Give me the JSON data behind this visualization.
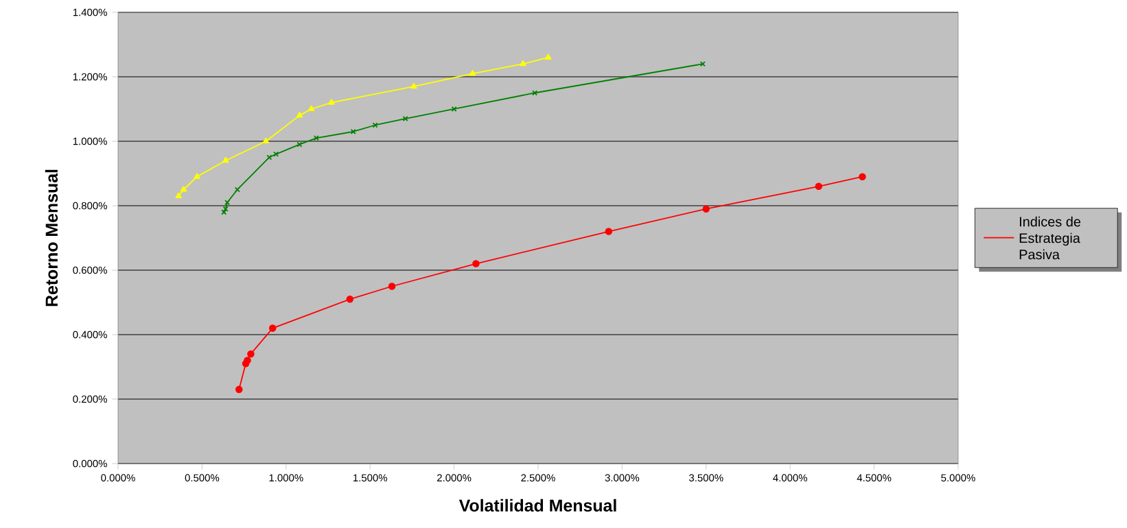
{
  "chart_data": {
    "type": "line",
    "xlabel": "Volatilidad Mensual",
    "ylabel": "Retorno Mensual",
    "xlim": [
      0,
      5
    ],
    "ylim": [
      0,
      1.4
    ],
    "xticks": [
      {
        "value": 0,
        "label": "0.000%"
      },
      {
        "value": 0.5,
        "label": "0.500%"
      },
      {
        "value": 1,
        "label": "1.000%"
      },
      {
        "value": 1.5,
        "label": "1.500%"
      },
      {
        "value": 2,
        "label": "2.000%"
      },
      {
        "value": 2.5,
        "label": "2.500%"
      },
      {
        "value": 3,
        "label": "3.000%"
      },
      {
        "value": 3.5,
        "label": "3.500%"
      },
      {
        "value": 4,
        "label": "4.000%"
      },
      {
        "value": 4.5,
        "label": "4.500%"
      },
      {
        "value": 5,
        "label": "5.000%"
      }
    ],
    "yticks": [
      {
        "value": 0,
        "label": "0.000%"
      },
      {
        "value": 0.2,
        "label": "0.200%"
      },
      {
        "value": 0.4,
        "label": "0.400%"
      },
      {
        "value": 0.6,
        "label": "0.600%"
      },
      {
        "value": 0.8,
        "label": "0.800%"
      },
      {
        "value": 1,
        "label": "1.000%"
      },
      {
        "value": 1.2,
        "label": "1.200%"
      },
      {
        "value": 1.4,
        "label": "1.400%"
      }
    ],
    "grid": "y",
    "legend": "right",
    "line_style": "solid",
    "series": [
      {
        "color": "#ffff00",
        "marker": "triangle",
        "x": [
          0.36,
          0.39,
          0.47,
          0.64,
          0.88,
          1.08,
          1.15,
          1.27,
          1.76,
          2.11,
          2.41,
          2.56
        ],
        "values": [
          0.83,
          0.85,
          0.89,
          0.94,
          1.0,
          1.08,
          1.1,
          1.12,
          1.17,
          1.21,
          1.24,
          1.26
        ]
      },
      {
        "color": "#008000",
        "marker": "cross",
        "x": [
          0.63,
          0.64,
          0.65,
          0.71,
          0.9,
          0.94,
          1.08,
          1.18,
          1.4,
          1.53,
          1.71,
          2.0,
          2.48,
          3.48
        ],
        "values": [
          0.78,
          0.79,
          0.81,
          0.85,
          0.95,
          0.96,
          0.99,
          1.01,
          1.03,
          1.05,
          1.07,
          1.1,
          1.15,
          1.24
        ]
      },
      {
        "name": "Indices de Estrategia Pasiva",
        "color": "#ff0000",
        "marker": "circle",
        "x": [
          0.72,
          0.76,
          0.77,
          0.79,
          0.92,
          1.38,
          1.63,
          2.13,
          2.92,
          3.5,
          4.17,
          4.43
        ],
        "values": [
          0.23,
          0.31,
          0.32,
          0.34,
          0.42,
          0.51,
          0.55,
          0.62,
          0.72,
          0.79,
          0.86,
          0.89
        ]
      }
    ]
  }
}
